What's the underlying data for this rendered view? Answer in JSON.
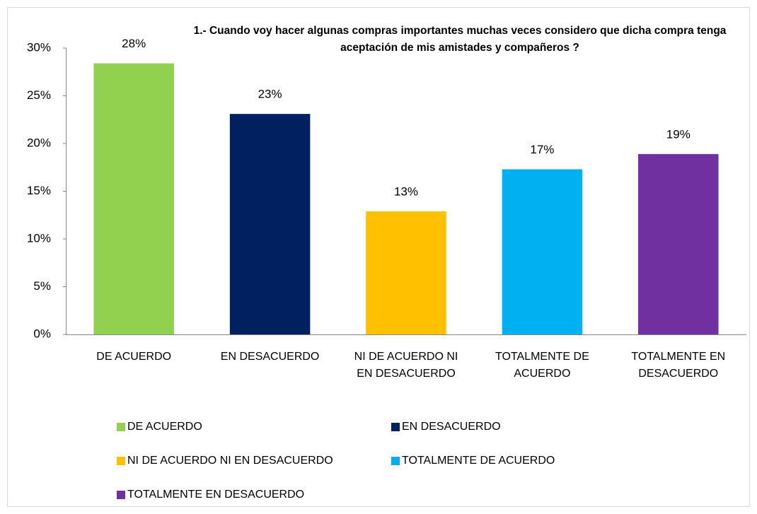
{
  "chart_data": {
    "type": "bar",
    "title": "1.- Cuando voy hacer algunas compras importantes muchas veces considero que dicha compra tenga aceptación de mis amistades y compañeros ?",
    "categories": [
      "DE ACUERDO",
      "EN DESACUERDO",
      "NI DE ACUERDO NI EN DESACUERDO",
      "TOTALMENTE DE ACUERDO",
      "TOTALMENTE EN DESACUERDO"
    ],
    "values": [
      28.4,
      23.1,
      12.9,
      17.3,
      18.9
    ],
    "value_labels": [
      "28%",
      "23%",
      "13%",
      "17%",
      "19%"
    ],
    "colors": [
      "#92d050",
      "#002060",
      "#ffc000",
      "#00b0f0",
      "#7030a0"
    ],
    "ylim": [
      0,
      30
    ],
    "yticks": [
      {
        "value": 0,
        "label": "0%"
      },
      {
        "value": 5,
        "label": "5%"
      },
      {
        "value": 10,
        "label": "10%"
      },
      {
        "value": 15,
        "label": "15%"
      },
      {
        "value": 20,
        "label": "20%"
      },
      {
        "value": 25,
        "label": "25%"
      },
      {
        "value": 30,
        "label": "30%"
      }
    ],
    "legend": "bottom"
  }
}
